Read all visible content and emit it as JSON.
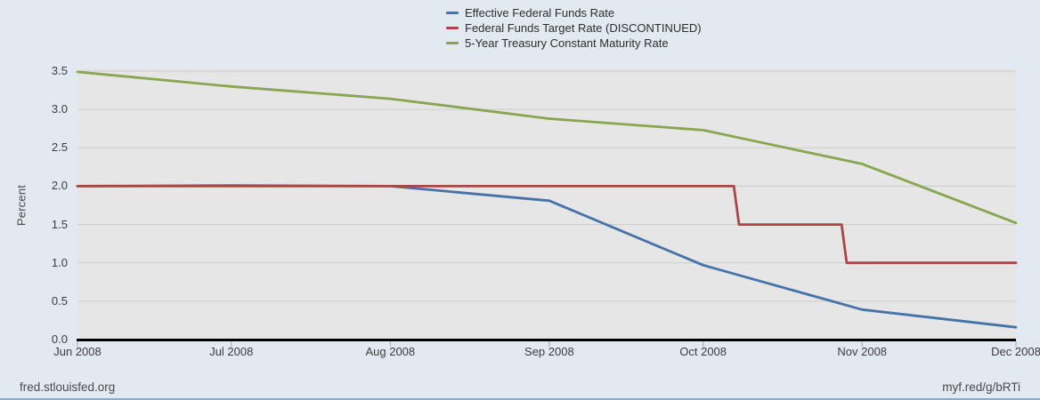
{
  "page": {
    "footer_left": "fred.stlouisfed.org",
    "footer_right": "myf.red/g/bRTi"
  },
  "colors": {
    "page_bg": "#e2e9f1",
    "plot_bg": "#e6e6e6",
    "gridline": "#cbcbcb",
    "axis_line": "#000000",
    "tick_mark": "#9aaabb",
    "accent_strip": "#8fa9c6"
  },
  "chart_data": {
    "type": "line",
    "title": "",
    "xlabel": "",
    "ylabel": "Percent",
    "grid": true,
    "legend_position": "top-center",
    "x_axis": {
      "unit": "days since 2008-06-01",
      "domain": [
        0,
        183
      ],
      "tick_days": [
        0,
        30,
        61,
        92,
        122,
        153,
        183
      ],
      "tick_labels": [
        "Jun 2008",
        "Jul 2008",
        "Aug 2008",
        "Sep 2008",
        "Oct 2008",
        "Nov 2008",
        "Dec 2008"
      ]
    },
    "y_axis": {
      "range": [
        0.0,
        3.5
      ],
      "ticks": [
        0.0,
        0.5,
        1.0,
        1.5,
        2.0,
        2.5,
        3.0,
        3.5
      ],
      "tick_labels": [
        "0.0",
        "0.5",
        "1.0",
        "1.5",
        "2.0",
        "2.5",
        "3.0",
        "3.5"
      ]
    },
    "series": [
      {
        "name": "Effective Federal Funds Rate",
        "color": "#4572a7",
        "x_days": [
          0,
          30,
          61,
          92,
          122,
          153,
          183
        ],
        "values": [
          2.0,
          2.01,
          2.0,
          1.81,
          0.97,
          0.39,
          0.16
        ]
      },
      {
        "name": "Federal Funds Target Rate (DISCONTINUED)",
        "color": "#aa4643",
        "x_days": [
          0,
          128,
          129,
          149,
          150,
          183
        ],
        "values": [
          2.0,
          2.0,
          1.5,
          1.5,
          1.0,
          1.0
        ]
      },
      {
        "name": "5-Year Treasury Constant Maturity Rate",
        "color": "#89a54e",
        "x_days": [
          0,
          30,
          61,
          92,
          122,
          153,
          183
        ],
        "values": [
          3.49,
          3.3,
          3.14,
          2.88,
          2.73,
          2.29,
          1.52
        ]
      }
    ]
  }
}
